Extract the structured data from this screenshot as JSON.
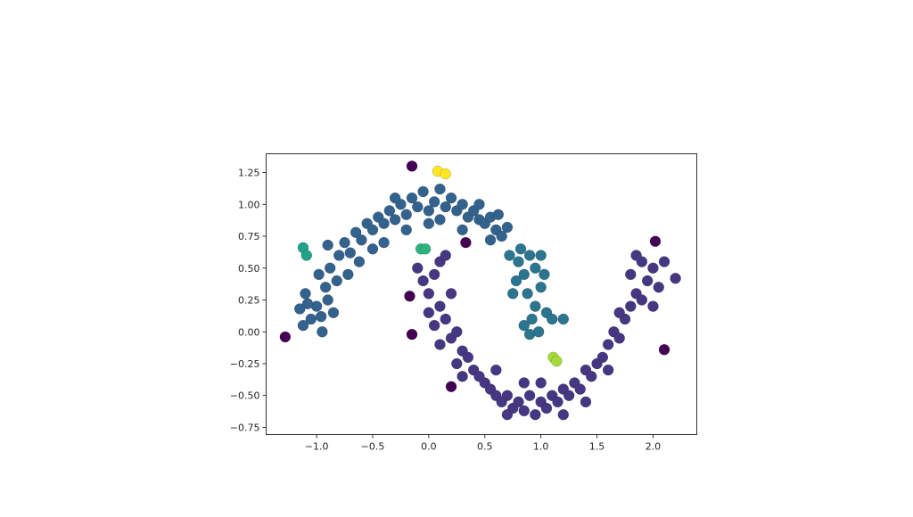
{
  "chart_data": {
    "type": "scatter",
    "title": "",
    "xlabel": "",
    "ylabel": "",
    "xlim": [
      -1.45,
      2.39
    ],
    "ylim": [
      -0.806,
      1.397
    ],
    "grid": false,
    "x_ticks": [
      -1.0,
      -0.5,
      0.0,
      0.5,
      1.0,
      1.5,
      2.0
    ],
    "x_tick_labels": [
      "−1.0",
      "−0.5",
      "0.0",
      "0.5",
      "1.0",
      "1.5",
      "2.0"
    ],
    "y_ticks": [
      1.25,
      1.0,
      0.75,
      0.5,
      0.25,
      0.0,
      -0.25,
      -0.5,
      -0.75
    ],
    "y_tick_labels": [
      "1.25",
      "1.00",
      "0.75",
      "0.50",
      "0.25",
      "0.00",
      "−0.25",
      "−0.50",
      "−0.75"
    ],
    "series": [
      {
        "color": "#33628d",
        "points": [
          [
            -1.1,
            0.3
          ],
          [
            -1.05,
            0.1
          ],
          [
            -0.95,
            0.0
          ],
          [
            -1.0,
            0.2
          ],
          [
            -0.92,
            0.35
          ],
          [
            -0.98,
            0.45
          ],
          [
            -0.88,
            0.5
          ],
          [
            -0.9,
            0.25
          ],
          [
            -0.85,
            0.15
          ],
          [
            -1.08,
            0.22
          ],
          [
            -0.8,
            0.6
          ],
          [
            -0.75,
            0.7
          ],
          [
            -0.7,
            0.62
          ],
          [
            -0.65,
            0.78
          ],
          [
            -0.6,
            0.72
          ],
          [
            -0.55,
            0.85
          ],
          [
            -0.5,
            0.8
          ],
          [
            -0.45,
            0.9
          ],
          [
            -0.4,
            0.85
          ],
          [
            -0.35,
            0.95
          ],
          [
            -0.3,
            0.88
          ],
          [
            -0.25,
            1.0
          ],
          [
            -0.2,
            0.92
          ],
          [
            -0.15,
            1.05
          ],
          [
            -0.1,
            0.98
          ],
          [
            -0.05,
            1.1
          ],
          [
            0.0,
            0.95
          ],
          [
            0.05,
            1.02
          ],
          [
            0.1,
            1.12
          ],
          [
            0.15,
            0.98
          ],
          [
            0.2,
            1.05
          ],
          [
            0.25,
            0.95
          ],
          [
            0.3,
            1.0
          ],
          [
            0.35,
            0.9
          ],
          [
            0.4,
            0.95
          ],
          [
            0.45,
            0.88
          ],
          [
            0.5,
            0.85
          ],
          [
            0.55,
            0.9
          ],
          [
            0.6,
            0.8
          ],
          [
            0.65,
            0.75
          ],
          [
            0.7,
            0.82
          ],
          [
            -0.72,
            0.45
          ],
          [
            -0.62,
            0.55
          ],
          [
            -0.5,
            0.65
          ],
          [
            -0.82,
            0.4
          ],
          [
            -0.3,
            1.05
          ],
          [
            0.1,
            0.88
          ],
          [
            0.45,
            1.0
          ],
          [
            -0.9,
            0.68
          ],
          [
            -1.15,
            0.18
          ],
          [
            -0.4,
            0.7
          ],
          [
            0.55,
            0.72
          ],
          [
            0.3,
            0.8
          ],
          [
            -1.12,
            0.05
          ],
          [
            -0.96,
            0.12
          ],
          [
            -0.2,
            0.8
          ],
          [
            0.0,
            0.85
          ],
          [
            0.62,
            0.92
          ]
        ]
      },
      {
        "color": "#2b758e",
        "points": [
          [
            0.72,
            0.6
          ],
          [
            0.8,
            0.55
          ],
          [
            0.85,
            0.45
          ],
          [
            0.9,
            0.6
          ],
          [
            0.95,
            0.5
          ],
          [
            0.78,
            0.4
          ],
          [
            0.88,
            0.3
          ],
          [
            0.95,
            0.2
          ],
          [
            1.0,
            0.35
          ],
          [
            0.92,
            0.1
          ],
          [
            0.85,
            0.05
          ],
          [
            1.05,
            0.15
          ],
          [
            1.1,
            0.1
          ],
          [
            1.2,
            0.1
          ],
          [
            0.98,
            0.0
          ],
          [
            0.9,
            -0.02
          ],
          [
            0.75,
            0.3
          ],
          [
            1.0,
            0.6
          ],
          [
            0.82,
            0.65
          ],
          [
            1.03,
            0.45
          ]
        ]
      },
      {
        "color": "#453781",
        "points": [
          [
            -0.1,
            0.5
          ],
          [
            -0.05,
            0.4
          ],
          [
            0.0,
            0.3
          ],
          [
            0.05,
            0.45
          ],
          [
            0.1,
            0.55
          ],
          [
            0.15,
            0.6
          ],
          [
            0.0,
            0.15
          ],
          [
            0.05,
            0.05
          ],
          [
            0.1,
            0.2
          ],
          [
            0.15,
            0.1
          ],
          [
            0.2,
            -0.05
          ],
          [
            0.25,
            0.0
          ],
          [
            0.3,
            -0.15
          ],
          [
            0.35,
            -0.2
          ],
          [
            0.4,
            -0.3
          ],
          [
            0.45,
            -0.35
          ],
          [
            0.5,
            -0.4
          ],
          [
            0.55,
            -0.45
          ],
          [
            0.6,
            -0.5
          ],
          [
            0.65,
            -0.55
          ],
          [
            0.7,
            -0.5
          ],
          [
            0.75,
            -0.6
          ],
          [
            0.8,
            -0.55
          ],
          [
            0.85,
            -0.62
          ],
          [
            0.9,
            -0.5
          ],
          [
            0.95,
            -0.65
          ],
          [
            1.0,
            -0.55
          ],
          [
            1.05,
            -0.6
          ],
          [
            1.1,
            -0.5
          ],
          [
            1.15,
            -0.55
          ],
          [
            1.2,
            -0.45
          ],
          [
            1.25,
            -0.5
          ],
          [
            1.3,
            -0.4
          ],
          [
            1.35,
            -0.45
          ],
          [
            1.4,
            -0.3
          ],
          [
            1.45,
            -0.35
          ],
          [
            1.5,
            -0.25
          ],
          [
            1.55,
            -0.2
          ],
          [
            1.6,
            -0.1
          ],
          [
            1.65,
            0.0
          ],
          [
            1.7,
            -0.05
          ],
          [
            1.75,
            0.1
          ],
          [
            1.8,
            0.2
          ],
          [
            1.85,
            0.3
          ],
          [
            1.9,
            0.25
          ],
          [
            1.95,
            0.4
          ],
          [
            1.8,
            0.45
          ],
          [
            1.9,
            0.55
          ],
          [
            2.0,
            0.5
          ],
          [
            2.05,
            0.35
          ],
          [
            2.1,
            0.55
          ],
          [
            2.2,
            0.42
          ],
          [
            1.85,
            0.6
          ],
          [
            2.0,
            0.2
          ],
          [
            0.3,
            -0.35
          ],
          [
            0.6,
            -0.3
          ],
          [
            1.0,
            -0.4
          ],
          [
            1.4,
            -0.55
          ],
          [
            0.2,
            0.3
          ],
          [
            0.25,
            -0.25
          ],
          [
            0.85,
            -0.4
          ],
          [
            1.2,
            -0.65
          ],
          [
            0.7,
            -0.65
          ],
          [
            1.7,
            0.15
          ],
          [
            1.6,
            -0.3
          ],
          [
            0.1,
            -0.1
          ]
        ]
      },
      {
        "color": "#440154",
        "points": [
          [
            -0.15,
            1.3
          ],
          [
            -1.28,
            -0.04
          ],
          [
            -0.17,
            0.28
          ],
          [
            -0.15,
            -0.02
          ],
          [
            0.33,
            0.7
          ],
          [
            0.2,
            -0.43
          ],
          [
            2.02,
            0.71
          ],
          [
            2.1,
            -0.14
          ]
        ]
      },
      {
        "color": "#20a386",
        "points": [
          [
            -1.12,
            0.66
          ],
          [
            -1.09,
            0.6
          ]
        ]
      },
      {
        "color": "#2eb37c",
        "points": [
          [
            -0.07,
            0.65
          ],
          [
            -0.03,
            0.65
          ]
        ]
      },
      {
        "color": "#a5db36",
        "points": [
          [
            1.11,
            -0.2
          ],
          [
            1.14,
            -0.23
          ]
        ]
      },
      {
        "color": "#fde725",
        "points": [
          [
            0.08,
            1.26
          ],
          [
            0.15,
            1.24
          ]
        ]
      }
    ]
  }
}
